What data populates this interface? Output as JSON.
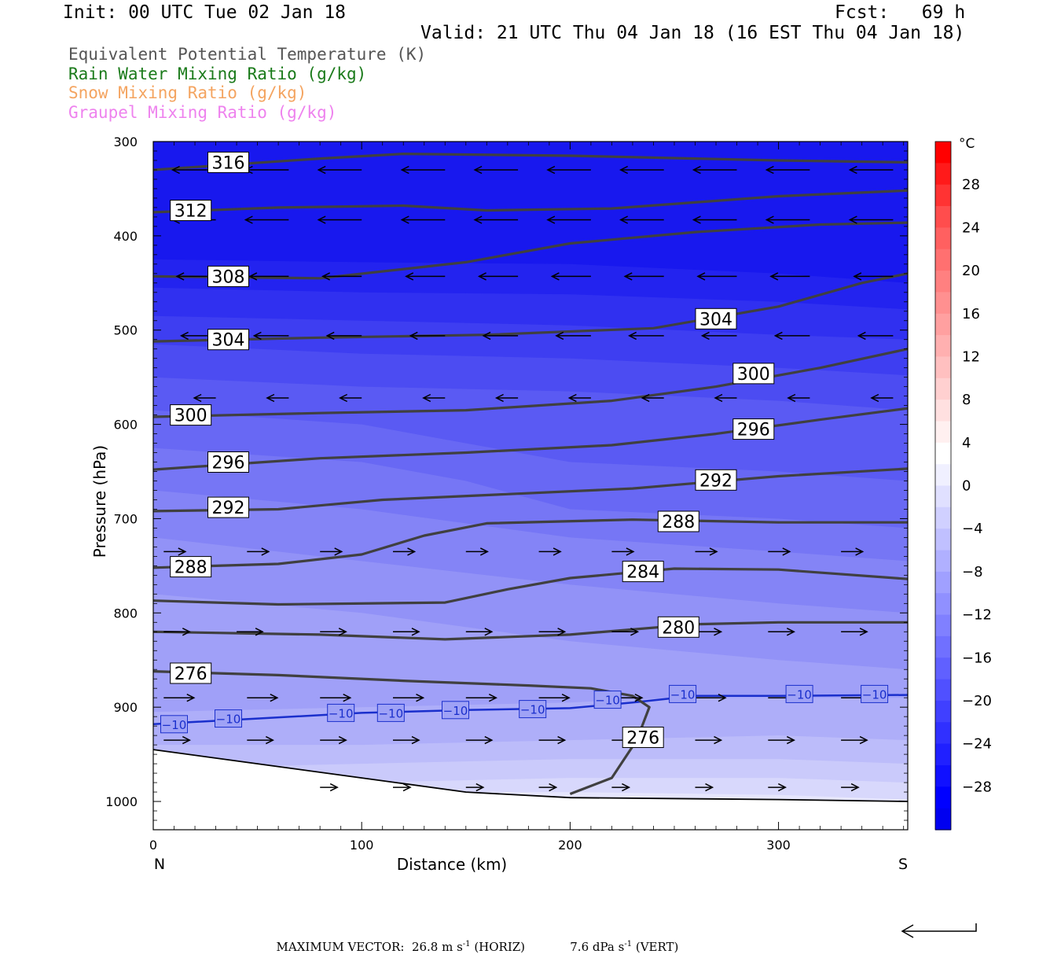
{
  "header": {
    "init": "Init: 00 UTC Tue 02 Jan 18",
    "fcst": "Fcst:   69 h",
    "valid": "Valid: 21 UTC Thu 04 Jan 18 (16 EST Thu 04 Jan 18)"
  },
  "legend": [
    {
      "label": "Equivalent Potential Temperature (K)",
      "color": "#555555"
    },
    {
      "label": "Rain Water Mixing Ratio (g/kg)",
      "color": "#1a7a1a"
    },
    {
      "label": "Snow Mixing Ratio (g/kg)",
      "color": "#f4a460"
    },
    {
      "label": "Graupel Mixing Ratio (g/kg)",
      "color": "#ee82ee"
    }
  ],
  "chart_data": {
    "type": "contour cross-section",
    "xlabel": "Distance (km)",
    "ylabel": "Pressure (hPa)",
    "xlim": [
      0,
      362
    ],
    "ylim": [
      300,
      1030
    ],
    "x_ticks": [
      0,
      100,
      200,
      300
    ],
    "y_ticks": [
      300,
      400,
      500,
      600,
      700,
      800,
      900,
      1000
    ],
    "x_end_labels": {
      "left": "N",
      "right": "S"
    },
    "colorbar": {
      "unit": "°C",
      "tick_labels": [
        "28",
        "24",
        "20",
        "16",
        "12",
        "8",
        "4",
        "0",
        "−4",
        "−8",
        "−12",
        "−16",
        "−20",
        "−24",
        "−28"
      ],
      "tick_values": [
        28,
        24,
        20,
        16,
        12,
        8,
        4,
        0,
        -4,
        -8,
        -12,
        -16,
        -20,
        -24,
        -28
      ],
      "levels": [
        32,
        30,
        28,
        26,
        24,
        22,
        20,
        18,
        16,
        14,
        12,
        10,
        8,
        6,
        4,
        2,
        0,
        -2,
        -4,
        -6,
        -8,
        -10,
        -12,
        -14,
        -16,
        -18,
        -20,
        -22,
        -24,
        -26,
        -28,
        -30,
        -32
      ],
      "colors": [
        "#ff0000",
        "#ff1a1a",
        "#ff3333",
        "#ff4d4d",
        "#ff6060",
        "#ff7070",
        "#ff8080",
        "#ff9090",
        "#ffa0a0",
        "#ffb0b0",
        "#ffc0c0",
        "#ffd0d0",
        "#ffe0e0",
        "#fff0f0",
        "#ffffff",
        "#f0f0ff",
        "#e0e0ff",
        "#d0d0ff",
        "#c0c0ff",
        "#b0b0ff",
        "#a0a0ff",
        "#9090ff",
        "#8080ff",
        "#7070ff",
        "#6060ff",
        "#5050ff",
        "#4040ff",
        "#3030ff",
        "#2020ff",
        "#1010ff",
        "#0000ff",
        "#0000f0"
      ]
    },
    "temperature_shading": [
      {
        "t": -32,
        "color": "#1818ee",
        "boundary": [
          [
            0,
            300
          ],
          [
            362,
            300
          ]
        ]
      },
      {
        "t": -30,
        "color": "#2323ef",
        "boundary": [
          [
            0,
            425
          ],
          [
            100,
            428
          ],
          [
            200,
            430
          ],
          [
            300,
            440
          ],
          [
            362,
            450
          ]
        ]
      },
      {
        "t": -28,
        "color": "#3030f0",
        "boundary": [
          [
            0,
            455
          ],
          [
            100,
            460
          ],
          [
            200,
            462
          ],
          [
            300,
            470
          ],
          [
            362,
            478
          ]
        ]
      },
      {
        "t": -26,
        "color": "#3e3ef1",
        "boundary": [
          [
            0,
            485
          ],
          [
            100,
            490
          ],
          [
            200,
            495
          ],
          [
            300,
            505
          ],
          [
            362,
            510
          ]
        ]
      },
      {
        "t": -24,
        "color": "#4c4cf2",
        "boundary": [
          [
            0,
            515
          ],
          [
            100,
            525
          ],
          [
            200,
            530
          ],
          [
            300,
            540
          ],
          [
            362,
            548
          ]
        ]
      },
      {
        "t": -22,
        "color": "#5a5af3",
        "boundary": [
          [
            0,
            550
          ],
          [
            100,
            560
          ],
          [
            200,
            565
          ],
          [
            300,
            575
          ],
          [
            362,
            585
          ]
        ]
      },
      {
        "t": -20,
        "color": "#6868f4",
        "boundary": [
          [
            0,
            585
          ],
          [
            100,
            600
          ],
          [
            150,
            620
          ],
          [
            200,
            640
          ],
          [
            300,
            650
          ],
          [
            362,
            660
          ]
        ]
      },
      {
        "t": -18,
        "color": "#7676f5",
        "boundary": [
          [
            0,
            625
          ],
          [
            100,
            640
          ],
          [
            150,
            660
          ],
          [
            200,
            690
          ],
          [
            300,
            700
          ],
          [
            362,
            710
          ]
        ]
      },
      {
        "t": -16,
        "color": "#8484f6",
        "boundary": [
          [
            0,
            670
          ],
          [
            100,
            690
          ],
          [
            200,
            720
          ],
          [
            300,
            735
          ],
          [
            362,
            745
          ]
        ]
      },
      {
        "t": -14,
        "color": "#9292f7",
        "boundary": [
          [
            0,
            720
          ],
          [
            100,
            745
          ],
          [
            200,
            770
          ],
          [
            300,
            790
          ],
          [
            362,
            800
          ]
        ]
      },
      {
        "t": -12,
        "color": "#a0a0f8",
        "boundary": [
          [
            0,
            780
          ],
          [
            100,
            800
          ],
          [
            200,
            830
          ],
          [
            300,
            850
          ],
          [
            362,
            860
          ]
        ]
      },
      {
        "t": -10,
        "color": "#aeaef9",
        "boundary": [
          [
            0,
            905
          ],
          [
            100,
            900
          ],
          [
            200,
            895
          ],
          [
            250,
            890
          ],
          [
            362,
            890
          ]
        ]
      },
      {
        "t": -8,
        "color": "#bcbcfa",
        "boundary": [
          [
            0,
            940
          ],
          [
            100,
            940
          ],
          [
            200,
            935
          ],
          [
            300,
            930
          ],
          [
            362,
            935
          ]
        ]
      },
      {
        "t": -6,
        "color": "#cacafb",
        "boundary": [
          [
            0,
            965
          ],
          [
            100,
            960
          ],
          [
            200,
            955
          ],
          [
            300,
            955
          ],
          [
            362,
            960
          ]
        ]
      },
      {
        "t": -4,
        "color": "#d8d8fc",
        "boundary": [
          [
            0,
            985
          ],
          [
            100,
            980
          ],
          [
            200,
            975
          ],
          [
            300,
            975
          ],
          [
            362,
            980
          ]
        ]
      },
      {
        "t": -2,
        "color": "#e6e6fd",
        "boundary": [
          [
            80,
            1000
          ],
          [
            150,
            990
          ],
          [
            200,
            990
          ],
          [
            300,
            993
          ],
          [
            362,
            998
          ]
        ]
      }
    ],
    "temperature_contour": {
      "value": -10,
      "color": "#1a2fcc",
      "points": [
        [
          0,
          918
        ],
        [
          50,
          912
        ],
        [
          100,
          906
        ],
        [
          150,
          903
        ],
        [
          200,
          901
        ],
        [
          230,
          895
        ],
        [
          260,
          888
        ],
        [
          300,
          888
        ],
        [
          362,
          887
        ]
      ],
      "labels": [
        [
          10,
          918
        ],
        [
          36,
          912
        ],
        [
          90,
          906
        ],
        [
          114,
          906
        ],
        [
          145,
          903
        ],
        [
          182,
          902
        ],
        [
          218,
          892
        ],
        [
          254,
          886
        ],
        [
          310,
          886
        ],
        [
          346,
          886
        ]
      ]
    },
    "theta_e_contours": [
      {
        "value": 316,
        "points": [
          [
            0,
            330
          ],
          [
            80,
            318
          ],
          [
            120,
            313
          ],
          [
            200,
            315
          ],
          [
            300,
            320
          ],
          [
            362,
            322
          ]
        ],
        "labels": [
          [
            36,
            322
          ]
        ]
      },
      {
        "value": 312,
        "points": [
          [
            0,
            375
          ],
          [
            60,
            370
          ],
          [
            120,
            368
          ],
          [
            160,
            373
          ],
          [
            220,
            371
          ],
          [
            300,
            358
          ],
          [
            362,
            352
          ]
        ],
        "labels": [
          [
            18,
            373
          ]
        ]
      },
      {
        "value": 308,
        "points": [
          [
            0,
            443
          ],
          [
            80,
            445
          ],
          [
            150,
            428
          ],
          [
            200,
            408
          ],
          [
            260,
            396
          ],
          [
            320,
            388
          ],
          [
            362,
            386
          ]
        ],
        "labels": [
          [
            36,
            443
          ]
        ]
      },
      {
        "value": 304,
        "points": [
          [
            0,
            512
          ],
          [
            80,
            508
          ],
          [
            160,
            505
          ],
          [
            240,
            498
          ],
          [
            300,
            475
          ],
          [
            340,
            450
          ],
          [
            362,
            440
          ]
        ],
        "labels": [
          [
            36,
            510
          ],
          [
            270,
            488
          ]
        ]
      },
      {
        "value": 300,
        "points": [
          [
            0,
            592
          ],
          [
            80,
            588
          ],
          [
            150,
            585
          ],
          [
            220,
            575
          ],
          [
            270,
            560
          ],
          [
            320,
            540
          ],
          [
            362,
            520
          ]
        ],
        "labels": [
          [
            18,
            590
          ],
          [
            288,
            546
          ]
        ]
      },
      {
        "value": 296,
        "points": [
          [
            0,
            648
          ],
          [
            80,
            636
          ],
          [
            150,
            630
          ],
          [
            220,
            622
          ],
          [
            270,
            610
          ],
          [
            320,
            595
          ],
          [
            362,
            583
          ]
        ],
        "labels": [
          [
            36,
            640
          ],
          [
            288,
            605
          ]
        ]
      },
      {
        "value": 292,
        "points": [
          [
            0,
            692
          ],
          [
            60,
            690
          ],
          [
            110,
            680
          ],
          [
            170,
            674
          ],
          [
            230,
            668
          ],
          [
            300,
            655
          ],
          [
            362,
            647
          ]
        ],
        "labels": [
          [
            36,
            688
          ],
          [
            270,
            659
          ]
        ]
      },
      {
        "value": 288,
        "points": [
          [
            0,
            752
          ],
          [
            60,
            748
          ],
          [
            100,
            738
          ],
          [
            130,
            718
          ],
          [
            160,
            705
          ],
          [
            230,
            701
          ],
          [
            300,
            704
          ],
          [
            362,
            704
          ]
        ],
        "labels": [
          [
            18,
            751
          ],
          [
            252,
            703
          ]
        ]
      },
      {
        "value": 284,
        "points": [
          [
            0,
            787
          ],
          [
            60,
            791
          ],
          [
            140,
            789
          ],
          [
            170,
            775
          ],
          [
            200,
            763
          ],
          [
            250,
            753
          ],
          [
            300,
            754
          ],
          [
            362,
            764
          ]
        ],
        "labels": [
          [
            235,
            756
          ]
        ]
      },
      {
        "value": 280,
        "points": [
          [
            0,
            820
          ],
          [
            80,
            823
          ],
          [
            140,
            828
          ],
          [
            200,
            823
          ],
          [
            260,
            812
          ],
          [
            300,
            810
          ],
          [
            362,
            810
          ]
        ],
        "labels": [
          [
            252,
            815
          ]
        ]
      },
      {
        "value": 276,
        "points": [
          [
            0,
            862
          ],
          [
            60,
            866
          ],
          [
            120,
            872
          ],
          [
            180,
            877
          ],
          [
            210,
            880
          ],
          [
            230,
            888
          ],
          [
            238,
            900
          ],
          [
            232,
            935
          ],
          [
            220,
            975
          ],
          [
            200,
            992
          ]
        ],
        "labels": [
          [
            18,
            864
          ],
          [
            235,
            932
          ]
        ]
      }
    ],
    "theta_e_labels": [
      "316",
      "312",
      "308",
      "304",
      "300",
      "296",
      "292",
      "288",
      "284",
      "280",
      "276"
    ],
    "terrain": {
      "points": [
        [
          0,
          945
        ],
        [
          50,
          960
        ],
        [
          100,
          975
        ],
        [
          150,
          990
        ],
        [
          200,
          996
        ],
        [
          300,
          998
        ],
        [
          362,
          1000
        ]
      ],
      "bottom": 1030
    },
    "wind_vectors": [
      {
        "y": 330,
        "xs": [
          30,
          65,
          100,
          140,
          175,
          210,
          245,
          280,
          315,
          355
        ],
        "u": -1.0
      },
      {
        "y": 383,
        "xs": [
          30,
          65,
          100,
          140,
          175,
          210,
          245,
          280,
          315,
          355
        ],
        "u": -1.0
      },
      {
        "y": 443,
        "xs": [
          30,
          65,
          100,
          140,
          175,
          210,
          245,
          280,
          315,
          355
        ],
        "u": -0.9
      },
      {
        "y": 506,
        "xs": [
          30,
          65,
          100,
          140,
          175,
          210,
          245,
          280,
          315,
          355
        ],
        "u": -0.8
      },
      {
        "y": 572,
        "xs": [
          30,
          65,
          100,
          140,
          175,
          210,
          245,
          280,
          315,
          355
        ],
        "u": -0.5
      },
      {
        "y": 735,
        "xs": [
          5,
          45,
          80,
          115,
          150,
          185,
          220,
          260,
          295,
          330
        ],
        "u": 0.5
      },
      {
        "y": 820,
        "xs": [
          5,
          40,
          80,
          115,
          150,
          185,
          220,
          260,
          295,
          330
        ],
        "u": 0.6
      },
      {
        "y": 890,
        "xs": [
          5,
          45,
          80,
          115,
          150,
          185,
          220,
          260,
          295,
          330
        ],
        "u": 0.7
      },
      {
        "y": 935,
        "xs": [
          5,
          45,
          80,
          115,
          150,
          185,
          220,
          260,
          295,
          330
        ],
        "u": 0.6
      },
      {
        "y": 985,
        "xs": [
          80,
          115,
          150,
          185,
          220,
          260,
          295,
          330
        ],
        "u": 0.4
      }
    ]
  },
  "footer": {
    "max_vector_label": "MAXIMUM VECTOR:",
    "horiz_value": "26.8 m s",
    "horiz_unit_suffix": " (HORIZ)",
    "vert_value": "7.6 dPa s",
    "vert_unit_suffix": " (VERT)",
    "exponent": "-1"
  }
}
